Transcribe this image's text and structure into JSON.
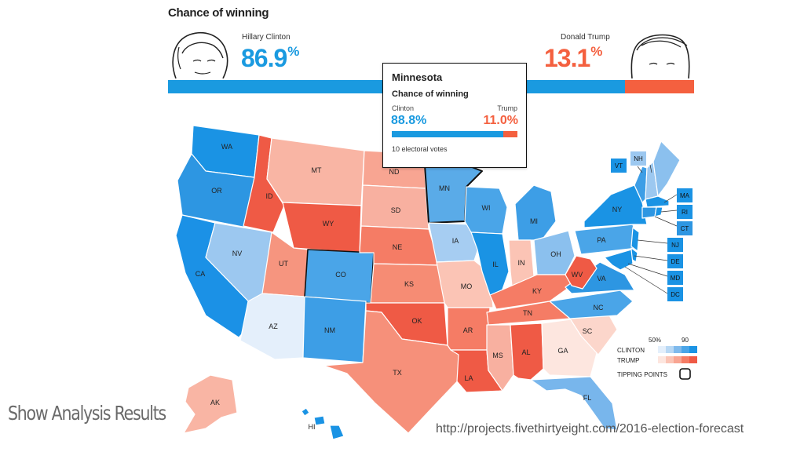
{
  "header": {
    "title": "Chance of winning"
  },
  "candidates": {
    "clinton": {
      "name": "Hillary Clinton",
      "pct": "86.9",
      "unit": "%",
      "share": 0.869,
      "color": "#1a9ae0"
    },
    "trump": {
      "name": "Donald Trump",
      "pct": "13.1",
      "unit": "%",
      "share": 0.131,
      "color": "#f4603f"
    }
  },
  "tooltip": {
    "state": "Minnesota",
    "subtitle": "Chance of winning",
    "left_label": "Clinton",
    "right_label": "Trump",
    "left_value": "88.8%",
    "right_value": "11.0%",
    "left_share": 0.888,
    "electoral": "10 electoral votes"
  },
  "states": [
    "WA",
    "OR",
    "CA",
    "ID",
    "NV",
    "MT",
    "WY",
    "UT",
    "AZ",
    "CO",
    "NM",
    "ND",
    "SD",
    "NE",
    "KS",
    "OK",
    "TX",
    "MN",
    "IA",
    "MO",
    "AR",
    "LA",
    "WI",
    "IL",
    "MI",
    "IN",
    "OH",
    "KY",
    "TN",
    "MS",
    "AL",
    "GA",
    "FL",
    "SC",
    "NC",
    "VA",
    "WV",
    "PA",
    "NY",
    "VT",
    "NH",
    "ME",
    "MA",
    "RI",
    "CT",
    "NJ",
    "DE",
    "MD",
    "DC",
    "AK",
    "HI"
  ],
  "legend": {
    "scale_low": "50%",
    "scale_high": "90",
    "clinton_label": "CLINTON",
    "trump_label": "TRUMP",
    "tipping_label": "TIPPING POINTS"
  },
  "footer": {
    "left": "Show Analysis Results",
    "url": "http://projects.fivethirtyeight.com/2016-election-forecast"
  }
}
